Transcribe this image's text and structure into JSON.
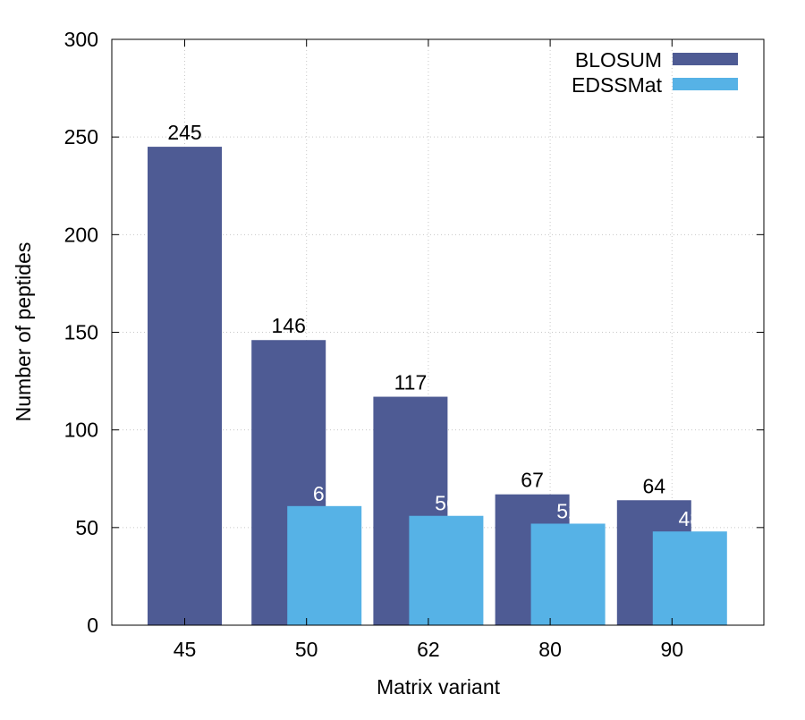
{
  "chart_data": {
    "type": "bar",
    "title": "",
    "xlabel": "Matrix variant",
    "ylabel": "Number of peptides",
    "categories": [
      "45",
      "50",
      "62",
      "80",
      "90"
    ],
    "ylim": [
      0,
      300
    ],
    "yticks": [
      0,
      50,
      100,
      150,
      200,
      250,
      300
    ],
    "grid": true,
    "legend_position": "top-right",
    "series": [
      {
        "name": "BLOSUM",
        "color": "#4e5b94",
        "values": [
          245,
          146,
          117,
          67,
          64
        ]
      },
      {
        "name": "EDSSMat",
        "color": "#56b2e6",
        "values": [
          null,
          61,
          56,
          52,
          48
        ]
      }
    ]
  }
}
